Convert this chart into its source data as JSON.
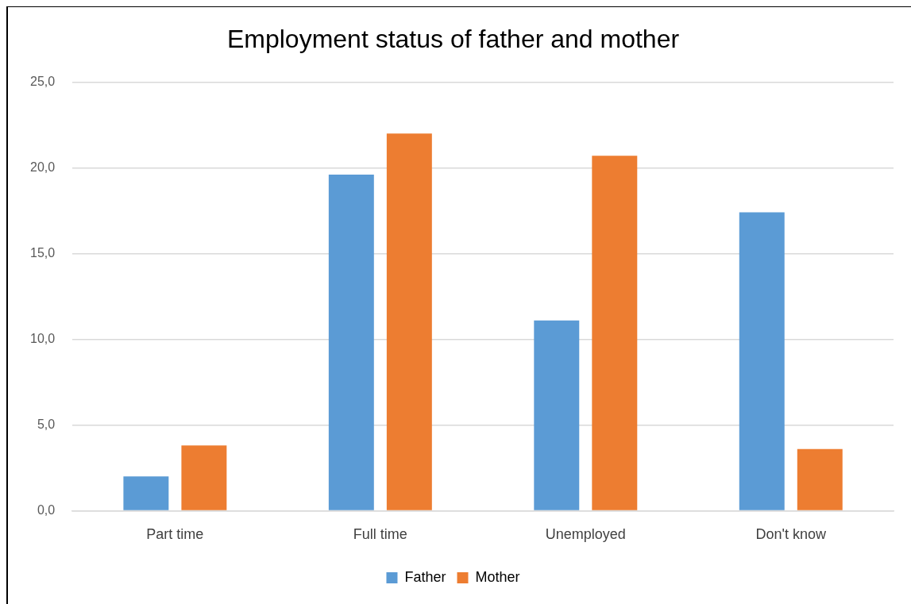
{
  "chart_data": {
    "type": "bar",
    "title": "Employment status of father and mother",
    "categories": [
      "Part time",
      "Full time",
      "Unemployed",
      "Don't know"
    ],
    "series": [
      {
        "name": "Father",
        "color": "#5b9bd5",
        "values": [
          2.0,
          19.6,
          11.1,
          17.4
        ]
      },
      {
        "name": "Mother",
        "color": "#ed7d31",
        "values": [
          3.8,
          22.0,
          20.7,
          3.6
        ]
      }
    ],
    "ylim": [
      0,
      25
    ],
    "yticks": [
      {
        "value": 0,
        "label": "0,0"
      },
      {
        "value": 5,
        "label": "5,0"
      },
      {
        "value": 10,
        "label": "10,0"
      },
      {
        "value": 15,
        "label": "15,0"
      },
      {
        "value": 20,
        "label": "20,0"
      },
      {
        "value": 25,
        "label": "25,0"
      }
    ],
    "grid": "y",
    "legend": "bottom"
  }
}
